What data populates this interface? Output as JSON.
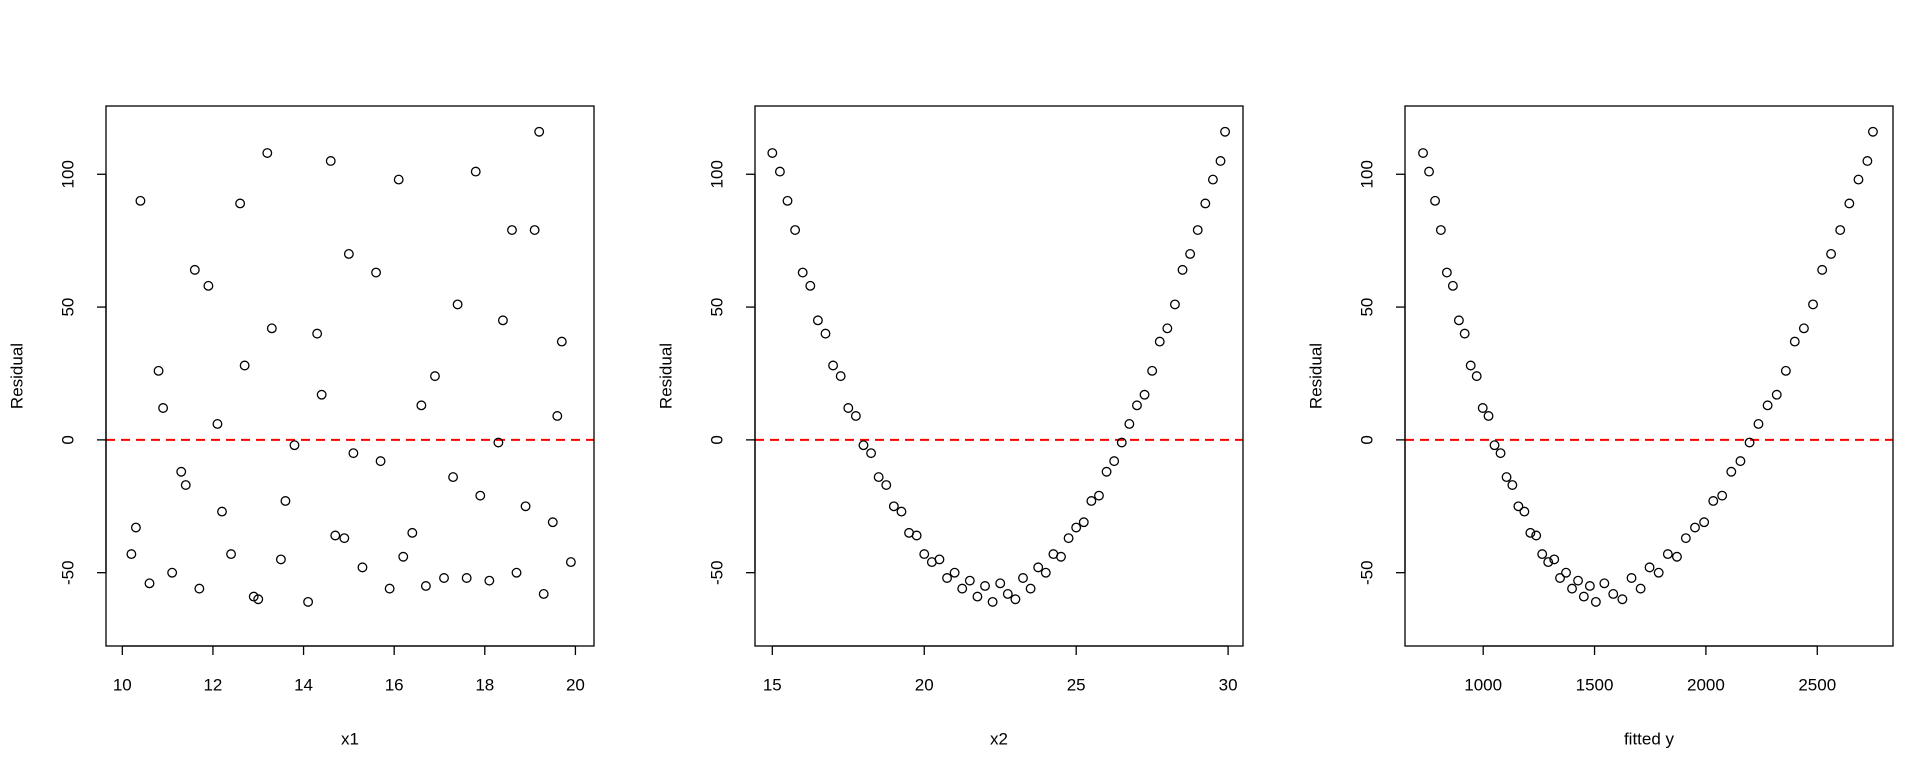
{
  "chart_data": [
    {
      "type": "scatter",
      "xlabel": "x1",
      "ylabel": "Residual",
      "color": "#000000",
      "x": [
        13.2,
        17.8,
        10.4,
        19.1,
        15.6,
        11.9,
        18.4,
        14.3,
        12.7,
        16.9,
        10.9,
        19.6,
        13.8,
        15.1,
        17.3,
        11.4,
        18.9,
        12.2,
        16.4,
        14.7,
        10.2,
        19.9,
        13.5,
        17.6,
        11.1,
        15.9,
        18.1,
        12.9,
        16.7,
        14.1,
        10.6,
        19.3,
        13.0,
        17.1,
        11.7,
        15.3,
        18.7,
        12.4,
        16.2,
        14.9,
        10.3,
        19.5,
        13.6,
        17.9,
        11.3,
        15.7,
        18.3,
        12.1,
        16.6,
        14.4,
        10.8,
        19.7,
        13.3,
        17.4,
        11.6,
        15.0,
        18.6,
        12.6,
        16.1,
        14.6,
        19.2
      ],
      "y": [
        108,
        101,
        90,
        79,
        63,
        58,
        45,
        40,
        28,
        24,
        12,
        9,
        -2,
        -5,
        -14,
        -17,
        -25,
        -27,
        -35,
        -36,
        -43,
        -46,
        -45,
        -52,
        -50,
        -56,
        -53,
        -59,
        -55,
        -61,
        -54,
        -58,
        -60,
        -52,
        -56,
        -48,
        -50,
        -43,
        -44,
        -37,
        -33,
        -31,
        -23,
        -21,
        -12,
        -8,
        -1,
        6,
        13,
        17,
        26,
        37,
        42,
        51,
        64,
        70,
        79,
        89,
        98,
        105,
        116
      ],
      "xlim": [
        9.64,
        20.41
      ],
      "ylim": [
        -77.6,
        125.7
      ],
      "xticks": [
        10,
        12,
        14,
        16,
        18,
        20
      ],
      "yticks": [
        -50,
        0,
        50,
        100
      ],
      "reference_line": {
        "value": 0,
        "color": "#ff0000"
      }
    },
    {
      "type": "scatter",
      "xlabel": "x2",
      "ylabel": "Residual",
      "color": "#000000",
      "x": [
        15,
        15.25,
        15.5,
        15.75,
        16,
        16.25,
        16.5,
        16.75,
        17,
        17.25,
        17.5,
        17.75,
        18,
        18.25,
        18.5,
        18.75,
        19,
        19.25,
        19.5,
        19.75,
        20,
        20.25,
        20.5,
        20.75,
        21,
        21.25,
        21.5,
        21.75,
        22,
        22.25,
        22.5,
        22.75,
        23,
        23.25,
        23.5,
        23.75,
        24,
        24.25,
        24.5,
        24.75,
        25,
        25.25,
        25.5,
        25.75,
        26,
        26.25,
        26.5,
        26.75,
        27,
        27.25,
        27.5,
        27.75,
        28,
        28.25,
        28.5,
        28.75,
        29,
        29.25,
        29.5,
        29.75,
        29.9
      ],
      "y": [
        108,
        101,
        90,
        79,
        63,
        58,
        45,
        40,
        28,
        24,
        12,
        9,
        -2,
        -5,
        -14,
        -17,
        -25,
        -27,
        -35,
        -36,
        -43,
        -46,
        -45,
        -52,
        -50,
        -56,
        -53,
        -59,
        -55,
        -61,
        -54,
        -58,
        -60,
        -52,
        -56,
        -48,
        -50,
        -43,
        -44,
        -37,
        -33,
        -31,
        -23,
        -21,
        -12,
        -8,
        -1,
        6,
        13,
        17,
        26,
        37,
        42,
        51,
        64,
        70,
        79,
        89,
        98,
        105,
        116
      ],
      "xlim": [
        14.43,
        30.49
      ],
      "ylim": [
        -77.6,
        125.7
      ],
      "xticks": [
        15,
        20,
        25,
        30
      ],
      "yticks": [
        -50,
        0,
        50,
        100
      ],
      "reference_line": {
        "value": 0,
        "color": "#ff0000"
      }
    },
    {
      "type": "scatter",
      "xlabel": "fitted y",
      "ylabel": "Residual",
      "color": "#000000",
      "x": [
        730,
        757,
        784,
        810,
        837,
        864,
        891,
        917,
        944,
        971,
        998,
        1024,
        1051,
        1078,
        1105,
        1131,
        1158,
        1185,
        1212,
        1238,
        1265,
        1292,
        1319,
        1345,
        1372,
        1399,
        1426,
        1452,
        1479,
        1506,
        1544,
        1584,
        1625,
        1666,
        1707,
        1747,
        1788,
        1829,
        1870,
        1910,
        1951,
        1992,
        2033,
        2073,
        2114,
        2155,
        2196,
        2236,
        2277,
        2318,
        2359,
        2399,
        2440,
        2481,
        2522,
        2562,
        2603,
        2644,
        2685,
        2725,
        2750
      ],
      "y": [
        108,
        101,
        90,
        79,
        63,
        58,
        45,
        40,
        28,
        24,
        12,
        9,
        -2,
        -5,
        -14,
        -17,
        -25,
        -27,
        -35,
        -36,
        -43,
        -46,
        -45,
        -52,
        -50,
        -56,
        -53,
        -59,
        -55,
        -61,
        -54,
        -58,
        -60,
        -52,
        -56,
        -48,
        -50,
        -43,
        -44,
        -37,
        -33,
        -31,
        -23,
        -21,
        -12,
        -8,
        -1,
        6,
        13,
        17,
        26,
        37,
        42,
        51,
        64,
        70,
        79,
        89,
        98,
        105,
        116
      ],
      "xlim": [
        649,
        2840
      ],
      "ylim": [
        -77.6,
        125.7
      ],
      "xticks": [
        1000,
        1500,
        2000,
        2500
      ],
      "yticks": [
        -50,
        0,
        50,
        100
      ],
      "reference_line": {
        "value": 0,
        "color": "#ff0000"
      }
    }
  ]
}
